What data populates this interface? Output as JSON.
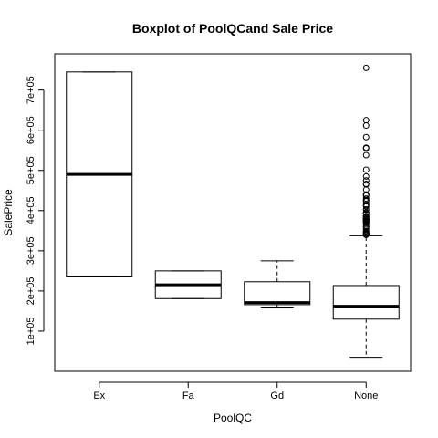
{
  "chart_data": {
    "type": "boxplot",
    "title": "Boxplot of PoolQCand Sale Price",
    "xlabel": "PoolQC",
    "ylabel": "SalePrice",
    "categories": [
      "Ex",
      "Fa",
      "Gd",
      "None"
    ],
    "ylim": [
      0,
      790000
    ],
    "yticks": [
      100000,
      200000,
      300000,
      400000,
      500000,
      600000,
      700000
    ],
    "ytick_labels": [
      "1e+05",
      "2e+05",
      "3e+05",
      "4e+05",
      "5e+05",
      "6e+05",
      "7e+05"
    ],
    "boxes": [
      {
        "category": "Ex",
        "min": 235000,
        "q1": 235000,
        "median": 490000,
        "q3": 745000,
        "max": 745000,
        "outliers": []
      },
      {
        "category": "Fa",
        "min": 181000,
        "q1": 181000,
        "median": 215500,
        "q3": 250000,
        "max": 250000,
        "outliers": []
      },
      {
        "category": "Gd",
        "min": 160000,
        "q1": 166000,
        "median": 171000,
        "q3": 223000,
        "max": 274970,
        "outliers": []
      },
      {
        "category": "None",
        "min": 34900,
        "q1": 129900,
        "median": 162000,
        "q3": 213500,
        "max": 337500,
        "outliers": [
          755000,
          625000,
          611657,
          582933,
          556581,
          555000,
          538000,
          501837,
          485000,
          475000,
          466500,
          465000,
          451950,
          440000,
          438780,
          437154,
          430000,
          426000,
          424870,
          423000,
          415298,
          412500,
          410000,
          402861,
          402000,
          395192,
          394617,
          392500,
          392000,
          386250,
          385000,
          384500,
          383970,
          381000,
          380000,
          378500,
          377500,
          377426,
          376162,
          375000,
          374000,
          372500,
          372402,
          370878,
          369900,
          367294,
          361919,
          360000,
          359100,
          354000,
          350000,
          348000,
          345000,
          344133,
          342643,
          341000,
          340000,
          339750
        ]
      }
    ]
  }
}
